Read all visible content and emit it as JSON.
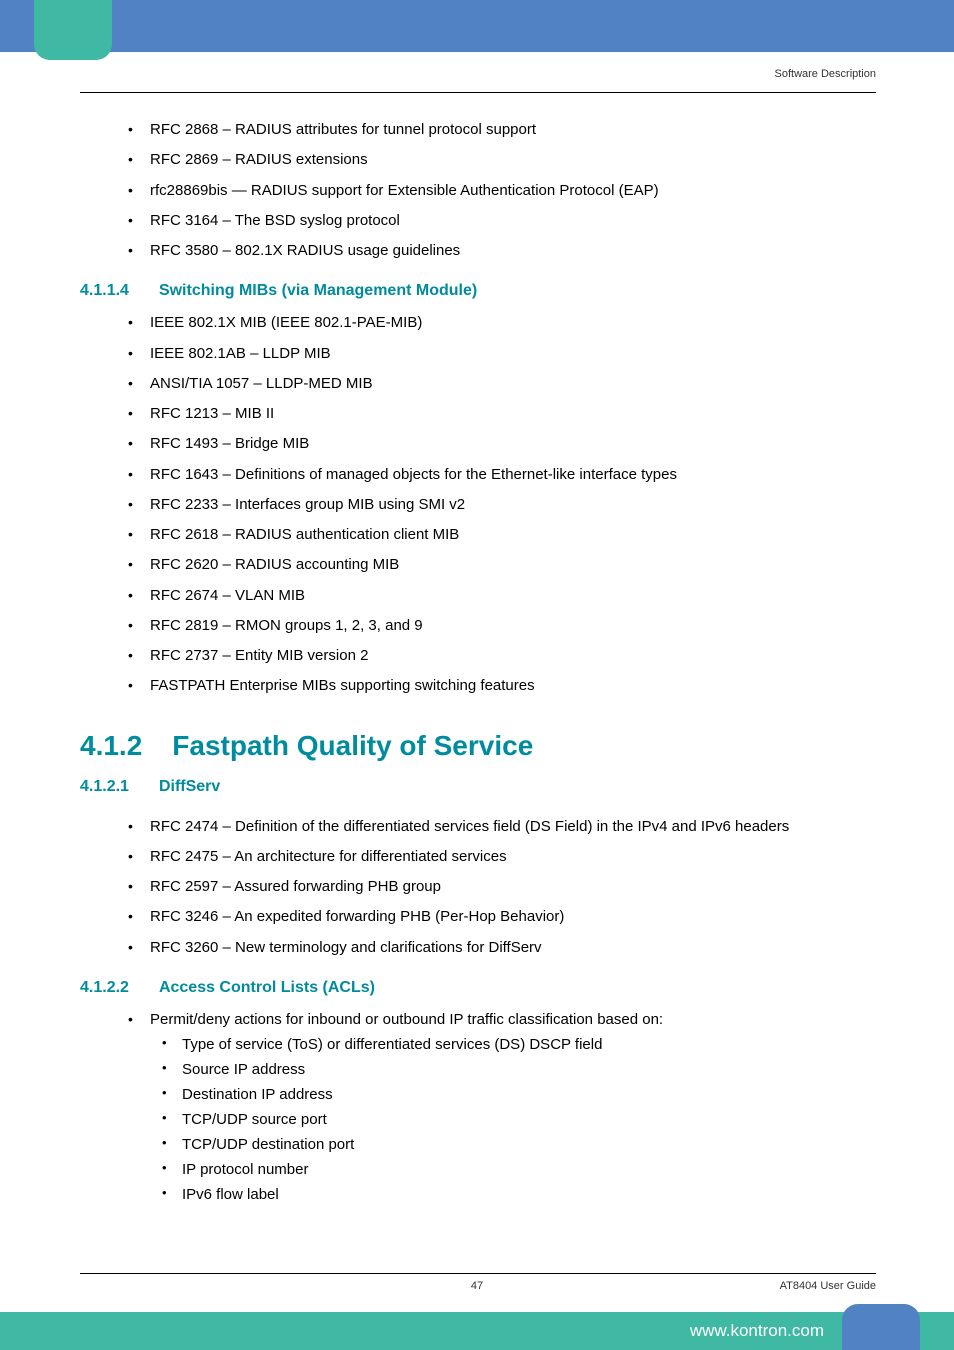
{
  "colors": {
    "top_banner": "#5082c4",
    "bottom_banner": "#3fb9a4",
    "heading": "#008b9e",
    "text": "#000000",
    "footer_url": "#ffffff"
  },
  "header": {
    "section_label": "Software Description"
  },
  "intro_items": [
    "RFC 2868 – RADIUS attributes for tunnel protocol support",
    "RFC 2869 – RADIUS extensions",
    "rfc28869bis — RADIUS support for Extensible Authentication Protocol (EAP)",
    "RFC 3164 – The BSD syslog protocol",
    "RFC 3580 – 802.1X RADIUS usage guidelines"
  ],
  "sec_4114": {
    "num": "4.1.1.4",
    "title": "Switching MIBs (via Management Module)",
    "items": [
      "IEEE 802.1X MIB (IEEE 802.1-PAE-MIB)",
      "IEEE 802.1AB – LLDP MIB",
      "ANSI/TIA 1057 – LLDP-MED MIB",
      "RFC 1213 – MIB II",
      "RFC 1493 – Bridge MIB",
      "RFC 1643 – Definitions of managed objects for the Ethernet-like interface types",
      "RFC 2233 – Interfaces group MIB using SMI v2",
      "RFC 2618 – RADIUS authentication client MIB",
      "RFC 2620 – RADIUS accounting MIB",
      "RFC 2674 – VLAN MIB",
      "RFC 2819 – RMON groups 1, 2, 3, and 9",
      "RFC 2737 – Entity MIB version 2",
      "FASTPATH Enterprise MIBs supporting switching features"
    ]
  },
  "sec_412": {
    "num": "4.1.2",
    "title": "Fastpath Quality of Service"
  },
  "sec_4121": {
    "num": "4.1.2.1",
    "title": "DiffServ",
    "items": [
      "RFC 2474 – Definition of the differentiated services field (DS Field) in the IPv4 and IPv6 headers",
      "RFC 2475 – An architecture for differentiated services",
      "RFC 2597 – Assured forwarding PHB group",
      "RFC 3246 – An expedited forwarding PHB (Per-Hop Behavior)",
      "RFC 3260 – New terminology and clarifications for DiffServ"
    ]
  },
  "sec_4122": {
    "num": "4.1.2.2",
    "title": "Access Control Lists (ACLs)",
    "lead": "Permit/deny actions for inbound or outbound IP traffic classification based on:",
    "subitems": [
      "Type of service (ToS) or differentiated services (DS) DSCP field",
      "Source IP address",
      "Destination IP address",
      "TCP/UDP source port",
      "TCP/UDP destination port",
      "IP protocol number",
      "IPv6 flow label"
    ]
  },
  "footer": {
    "page": "47",
    "doc": "AT8404 User  Guide",
    "url": "www.kontron.com"
  }
}
